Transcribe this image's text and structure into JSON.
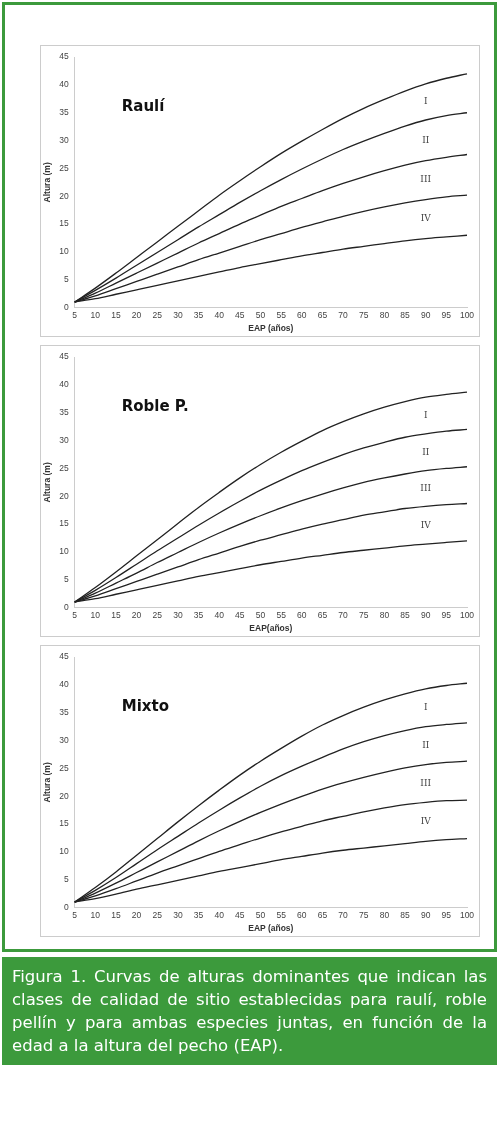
{
  "chart_data": [
    {
      "type": "line",
      "title": "Raulí",
      "xlabel": "EAP (años)",
      "ylabel": "Altura (m)",
      "categories": [
        "5",
        "10",
        "15",
        "20",
        "25",
        "30",
        "35",
        "40",
        "45",
        "50",
        "55",
        "60",
        "65",
        "70",
        "75",
        "80",
        "85",
        "90",
        "95",
        "100"
      ],
      "ylim": [
        0,
        45
      ],
      "yticks": [
        0,
        5,
        10,
        15,
        20,
        25,
        30,
        35,
        40,
        45
      ],
      "grid": false,
      "legend": false,
      "marker": "none",
      "line_style": "solid",
      "series": [
        {
          "color": "#222222",
          "values": [
            1,
            3.5,
            6.2,
            9,
            11.8,
            14.6,
            17.4,
            20.2,
            22.8,
            25.3,
            27.7,
            29.9,
            32,
            34,
            35.8,
            37.4,
            38.9,
            40.2,
            41.2,
            42
          ]
        },
        {
          "color": "#222222",
          "values": [
            1,
            3.1,
            5.3,
            7.6,
            9.9,
            12.2,
            14.5,
            16.7,
            18.9,
            21,
            23,
            24.9,
            26.7,
            28.4,
            29.9,
            31.3,
            32.6,
            33.7,
            34.5,
            35
          ]
        },
        {
          "color": "#222222",
          "values": [
            1,
            2.6,
            4.4,
            6.2,
            8,
            9.8,
            11.6,
            13.3,
            15,
            16.6,
            18.2,
            19.6,
            21,
            22.3,
            23.5,
            24.6,
            25.6,
            26.4,
            27,
            27.5
          ]
        },
        {
          "color": "#222222",
          "values": [
            1,
            2.1,
            3.4,
            4.7,
            6,
            7.3,
            8.6,
            9.8,
            11,
            12.2,
            13.3,
            14.4,
            15.4,
            16.4,
            17.3,
            18.1,
            18.8,
            19.4,
            19.9,
            20.2
          ]
        },
        {
          "color": "#222222",
          "values": [
            1,
            1.6,
            2.4,
            3.2,
            4,
            4.8,
            5.6,
            6.4,
            7.2,
            7.9,
            8.6,
            9.3,
            9.9,
            10.5,
            11,
            11.5,
            12,
            12.4,
            12.7,
            13
          ]
        }
      ],
      "annotations": [
        "I",
        "II",
        "III",
        "IV"
      ]
    },
    {
      "type": "line",
      "title": "Roble P.",
      "xlabel": "EAP(años)",
      "ylabel": "Altura (m)",
      "categories": [
        "5",
        "10",
        "15",
        "20",
        "25",
        "30",
        "35",
        "40",
        "45",
        "50",
        "55",
        "60",
        "65",
        "70",
        "75",
        "80",
        "85",
        "90",
        "95",
        "100"
      ],
      "ylim": [
        0,
        45
      ],
      "yticks": [
        0,
        5,
        10,
        15,
        20,
        25,
        30,
        35,
        40,
        45
      ],
      "grid": false,
      "legend": false,
      "marker": "none",
      "line_style": "solid",
      "series": [
        {
          "color": "#222222",
          "values": [
            1,
            3.6,
            6.4,
            9.3,
            12.2,
            15.1,
            18,
            20.7,
            23.3,
            25.7,
            27.9,
            29.9,
            31.8,
            33.4,
            34.8,
            36,
            37,
            37.8,
            38.3,
            38.7
          ]
        },
        {
          "color": "#222222",
          "values": [
            1,
            3.1,
            5.4,
            7.8,
            10.2,
            12.5,
            14.8,
            17,
            19.1,
            21.1,
            22.9,
            24.6,
            26.1,
            27.5,
            28.7,
            29.7,
            30.6,
            31.2,
            31.7,
            32
          ]
        },
        {
          "color": "#222222",
          "values": [
            1,
            2.6,
            4.4,
            6.2,
            8.1,
            9.9,
            11.7,
            13.4,
            15,
            16.5,
            17.9,
            19.2,
            20.4,
            21.5,
            22.5,
            23.3,
            24,
            24.6,
            25,
            25.3
          ]
        },
        {
          "color": "#222222",
          "values": [
            1,
            2.1,
            3.4,
            4.7,
            6,
            7.3,
            8.6,
            9.8,
            11,
            12.1,
            13.1,
            14.1,
            15,
            15.8,
            16.6,
            17.2,
            17.8,
            18.2,
            18.5,
            18.7
          ]
        },
        {
          "color": "#222222",
          "values": [
            1,
            1.6,
            2.4,
            3.2,
            4,
            4.8,
            5.6,
            6.3,
            7,
            7.7,
            8.3,
            8.9,
            9.4,
            9.9,
            10.3,
            10.7,
            11.1,
            11.4,
            11.7,
            12
          ]
        }
      ],
      "annotations": [
        "I",
        "II",
        "III",
        "IV"
      ]
    },
    {
      "type": "line",
      "title": "Mixto",
      "xlabel": "EAP (años)",
      "ylabel": "Altura (m)",
      "categories": [
        "5",
        "10",
        "15",
        "20",
        "25",
        "30",
        "35",
        "40",
        "45",
        "50",
        "55",
        "60",
        "65",
        "70",
        "75",
        "80",
        "85",
        "90",
        "95",
        "100"
      ],
      "ylim": [
        0,
        45
      ],
      "yticks": [
        0,
        5,
        10,
        15,
        20,
        25,
        30,
        35,
        40,
        45
      ],
      "grid": false,
      "legend": false,
      "marker": "none",
      "line_style": "solid",
      "series": [
        {
          "color": "#222222",
          "values": [
            1,
            3.6,
            6.4,
            9.4,
            12.4,
            15.4,
            18.3,
            21.1,
            23.8,
            26.3,
            28.6,
            30.8,
            32.8,
            34.5,
            36,
            37.3,
            38.4,
            39.3,
            39.9,
            40.3
          ]
        },
        {
          "color": "#222222",
          "values": [
            1,
            3.1,
            5.4,
            7.9,
            10.4,
            12.8,
            15.2,
            17.5,
            19.7,
            21.8,
            23.7,
            25.4,
            27,
            28.5,
            29.8,
            30.9,
            31.8,
            32.5,
            32.9,
            33.2
          ]
        },
        {
          "color": "#222222",
          "values": [
            1,
            2.6,
            4.4,
            6.3,
            8.2,
            10.1,
            12,
            13.8,
            15.5,
            17.1,
            18.6,
            20,
            21.3,
            22.4,
            23.4,
            24.3,
            25.1,
            25.7,
            26.1,
            26.3
          ]
        },
        {
          "color": "#222222",
          "values": [
            1,
            2.1,
            3.4,
            4.8,
            6.2,
            7.5,
            8.8,
            10.1,
            11.3,
            12.5,
            13.6,
            14.6,
            15.6,
            16.4,
            17.2,
            17.9,
            18.5,
            18.9,
            19.2,
            19.3
          ]
        },
        {
          "color": "#222222",
          "values": [
            1,
            1.6,
            2.4,
            3.3,
            4.1,
            4.9,
            5.7,
            6.5,
            7.2,
            7.9,
            8.6,
            9.2,
            9.8,
            10.3,
            10.7,
            11.1,
            11.5,
            11.9,
            12.2,
            12.4
          ]
        }
      ],
      "annotations": [
        "I",
        "II",
        "III",
        "IV",
        "Figura 1. Curvas de alturas dominantes que indican las clases de calidad de sitio establecidas para raulí, roble pellín y para ambas especies juntas, en función de la edad a la altura del pecho (EAP)."
      ]
    }
  ]
}
